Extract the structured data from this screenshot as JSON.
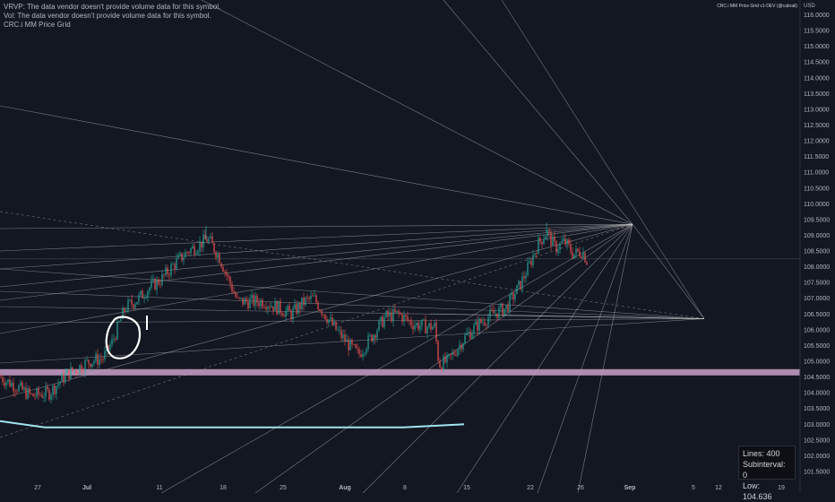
{
  "header": {
    "legend": [
      "VRVP: The data vendor doesn't provide volume data for this symbol.",
      "Vol: The data vendor doesn't provide volume data for this symbol.",
      "CRC.i MM Price Grid"
    ],
    "indicator_tag": "CRC.i MM Price Grid v1-DEV (@cabrail)"
  },
  "info_box": {
    "lines": "Lines: 400",
    "subinterval": "Subinterval: 0",
    "low": "Low: 104.636"
  },
  "colors": {
    "background": "#131722",
    "up_candle": "#26a69a",
    "down_candle": "#ef5350",
    "grid_lines": "#cfcfcf",
    "support_band": "#c9a0c9",
    "ma_line": "#9fe4ee",
    "annotation": "#ffffff"
  },
  "chart_data": {
    "type": "candlestick",
    "currency": "USD",
    "x_tick_labels": [
      "27",
      "Jul",
      "11",
      "18",
      "25",
      "Aug",
      "8",
      "15",
      "22",
      "26",
      "Sep",
      "5",
      "12",
      "19"
    ],
    "y_tick_labels": [
      "116.0000",
      "115.5000",
      "115.0000",
      "114.5000",
      "114.0000",
      "113.5000",
      "113.0000",
      "112.5000",
      "112.0000",
      "111.5000",
      "111.0000",
      "110.5000",
      "110.0000",
      "109.5000",
      "109.0000",
      "108.5000",
      "108.0000",
      "107.5000",
      "107.0000",
      "106.5000",
      "106.0000",
      "105.5000",
      "105.0000",
      "104.5000",
      "104.0000",
      "103.5000",
      "103.0000",
      "102.5000",
      "102.0000",
      "101.5000"
    ],
    "ylim": [
      101.3,
      116.3
    ],
    "price_trend": [
      [
        0,
        104.5
      ],
      [
        18,
        104.2
      ],
      [
        35,
        103.9
      ],
      [
        55,
        104.0
      ],
      [
        75,
        104.6
      ],
      [
        100,
        105.0
      ],
      [
        115,
        105.1
      ],
      [
        125,
        105.6
      ],
      [
        140,
        106.7
      ],
      [
        155,
        107.0
      ],
      [
        165,
        107.3
      ],
      [
        180,
        107.6
      ],
      [
        195,
        108.1
      ],
      [
        210,
        108.5
      ],
      [
        222,
        108.7
      ],
      [
        232,
        108.9
      ],
      [
        245,
        108.3
      ],
      [
        255,
        107.6
      ],
      [
        265,
        106.9
      ],
      [
        280,
        106.9
      ],
      [
        295,
        106.9
      ],
      [
        310,
        106.7
      ],
      [
        325,
        106.5
      ],
      [
        340,
        106.9
      ],
      [
        350,
        107.0
      ],
      [
        360,
        106.6
      ],
      [
        375,
        106.0
      ],
      [
        390,
        105.5
      ],
      [
        400,
        105.2
      ],
      [
        415,
        105.8
      ],
      [
        430,
        106.4
      ],
      [
        445,
        106.5
      ],
      [
        460,
        106.2
      ],
      [
        475,
        106.1
      ],
      [
        485,
        106.1
      ],
      [
        490,
        104.9
      ],
      [
        500,
        105.0
      ],
      [
        510,
        105.4
      ],
      [
        520,
        105.8
      ],
      [
        535,
        106.2
      ],
      [
        550,
        106.5
      ],
      [
        565,
        106.7
      ],
      [
        580,
        107.4
      ],
      [
        590,
        108.0
      ],
      [
        600,
        108.7
      ],
      [
        610,
        109.1
      ],
      [
        620,
        108.6
      ],
      [
        630,
        108.8
      ],
      [
        640,
        108.4
      ],
      [
        650,
        108.5
      ],
      [
        655,
        108.2
      ]
    ],
    "support_band": [
      104.55,
      104.75
    ],
    "current_price_level": 108.25,
    "grid_anchors": [
      {
        "x": 706,
        "y": 109.35
      },
      {
        "x": 786,
        "y": 106.35
      }
    ],
    "moving_average": [
      [
        0,
        103.1
      ],
      [
        50,
        102.9
      ],
      [
        150,
        102.9
      ],
      [
        300,
        102.9
      ],
      [
        450,
        102.9
      ],
      [
        518,
        103.0
      ]
    ]
  }
}
